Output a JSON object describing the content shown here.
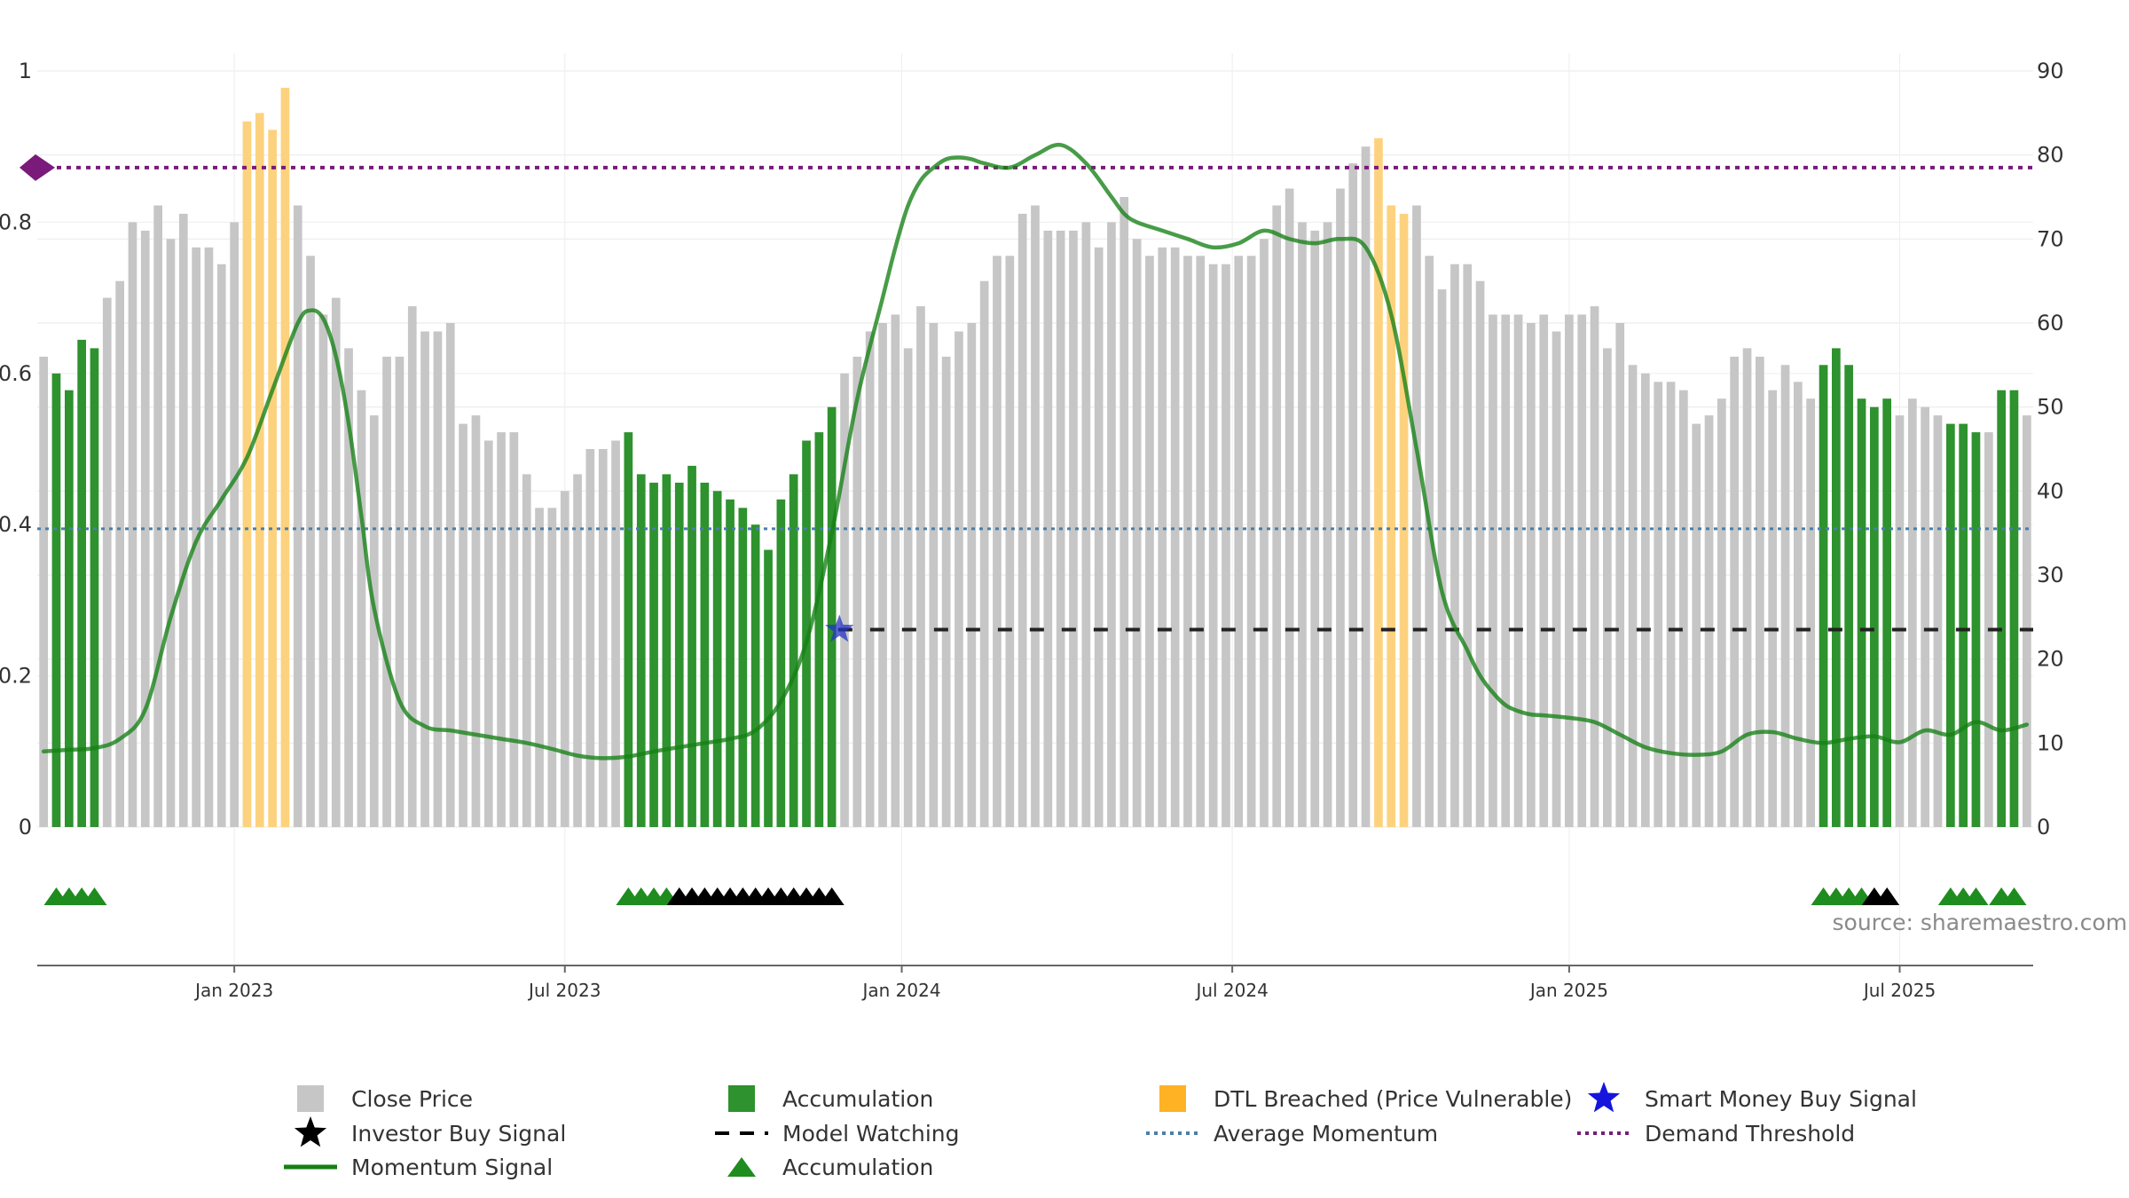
{
  "chart_data": {
    "type": "bar",
    "source": "source: sharemaestro.com",
    "left_axis": {
      "ticks": [
        0,
        0.2,
        0.4,
        0.6,
        0.8,
        1
      ],
      "tick_labels": [
        "0",
        "0.2",
        "0.4",
        "0.6",
        "0.8",
        "1"
      ],
      "ylim": [
        0,
        1
      ]
    },
    "right_axis": {
      "ticks": [
        0,
        10,
        20,
        30,
        40,
        50,
        60,
        70,
        80,
        90
      ],
      "tick_labels": [
        "0",
        "10",
        "20",
        "30",
        "40",
        "50",
        "60",
        "70",
        "80",
        "90"
      ],
      "ylim": [
        0,
        90
      ]
    },
    "x_axis": {
      "range": [
        0,
        157
      ],
      "ticks": [
        15.5,
        41.5,
        68,
        94,
        120.5,
        146.5
      ],
      "tick_labels": [
        "Jan 2023",
        "Jul 2023",
        "Jan 2024",
        "Jul 2024",
        "Jan 2025",
        "Jul 2025"
      ]
    },
    "bars": {
      "name": "Close Price",
      "values": [
        56,
        54,
        52,
        58,
        57,
        63,
        65,
        72,
        71,
        74,
        70,
        73,
        69,
        69,
        67,
        72,
        84,
        85,
        83,
        88,
        74,
        68,
        61,
        63,
        57,
        52,
        49,
        56,
        56,
        62,
        59,
        59,
        60,
        48,
        49,
        46,
        47,
        47,
        42,
        38,
        38,
        40,
        42,
        45,
        45,
        46,
        47,
        42,
        41,
        42,
        41,
        43,
        41,
        40,
        39,
        38,
        36,
        33,
        39,
        42,
        46,
        47,
        50,
        54,
        56,
        59,
        60,
        61,
        57,
        62,
        60,
        56,
        59,
        60,
        65,
        68,
        68,
        73,
        74,
        71,
        71,
        71,
        72,
        69,
        72,
        75,
        70,
        68,
        69,
        69,
        68,
        68,
        67,
        67,
        68,
        68,
        70,
        74,
        76,
        72,
        71,
        72,
        76,
        79,
        81,
        82,
        74,
        73,
        74,
        68,
        64,
        67,
        67,
        65,
        61,
        61,
        61,
        60,
        61,
        59,
        61,
        61,
        62,
        57,
        60,
        55,
        54,
        53,
        53,
        52,
        48,
        49,
        51,
        56,
        57,
        56,
        52,
        55,
        53,
        51,
        55,
        57,
        55,
        51,
        50,
        51,
        49,
        51,
        50,
        49,
        48,
        48,
        47,
        47,
        52,
        52,
        49
      ],
      "colors": {
        "price": "#c6c6c6",
        "accumulation": "#2e922e",
        "dtl": "#fdd27e"
      },
      "accumulation_ranges": [
        [
          1,
          4
        ],
        [
          46,
          62
        ],
        [
          140,
          145
        ],
        [
          150,
          152
        ],
        [
          154,
          155
        ]
      ],
      "dtl_ranges": [
        [
          16,
          19
        ],
        [
          105,
          107
        ]
      ]
    },
    "momentum_signal": {
      "name": "Momentum Signal",
      "color": "#158015",
      "x": [
        0,
        2,
        4,
        6,
        8,
        10,
        12,
        14,
        16,
        18,
        20,
        21,
        22,
        23,
        24,
        25,
        26,
        28,
        30,
        32,
        34,
        36,
        38,
        40,
        42,
        44,
        46,
        48,
        50,
        52,
        54,
        56,
        58,
        60,
        62,
        64,
        66,
        67,
        68,
        69,
        70,
        71,
        72,
        73,
        74,
        76,
        78,
        80,
        82,
        84,
        85,
        86,
        88,
        90,
        92,
        94,
        96,
        98,
        100,
        102,
        104,
        106,
        108,
        110,
        112,
        113,
        114,
        115,
        116,
        117,
        118,
        120,
        122,
        124,
        126,
        128,
        130,
        132,
        134,
        136,
        138,
        140,
        142,
        144,
        146,
        148,
        150,
        152,
        154,
        156
      ],
      "y": [
        9,
        9.2,
        9.4,
        10.5,
        14,
        25,
        34,
        39,
        44,
        52,
        60,
        61.5,
        60.5,
        56,
        48,
        37,
        26,
        15,
        12,
        11.5,
        11,
        10.5,
        10,
        9.3,
        8.5,
        8.2,
        8.4,
        9,
        9.5,
        10,
        10.5,
        11.5,
        15,
        22,
        35,
        51,
        63,
        69,
        74,
        77,
        78.5,
        79.5,
        79.7,
        79.5,
        79,
        78.5,
        80,
        81.2,
        79,
        75,
        73,
        72,
        71,
        70,
        69,
        69.5,
        71,
        70,
        69.5,
        70,
        69,
        61,
        45,
        28,
        21,
        18,
        16,
        14.5,
        13.8,
        13.4,
        13.3,
        13,
        12.5,
        11,
        9.5,
        8.8,
        8.6,
        9,
        11,
        11.3,
        10.5,
        10,
        10.5,
        10.8,
        10.1,
        11.5,
        11,
        12.5,
        11.5,
        12.2
      ]
    },
    "average_momentum": {
      "name": "Average Momentum",
      "value": 35.5,
      "color": "#4a7fa8"
    },
    "demand_threshold": {
      "name": "Demand Threshold",
      "value": 78.5,
      "color": "#7a1a7a"
    },
    "model_watching": {
      "name": "Model Watching",
      "value": 23.5,
      "x_range": [
        63,
        157
      ],
      "color": "#222222"
    },
    "smart_money_signals": [
      {
        "x": 62.6,
        "y": 23.5
      }
    ],
    "accumulation_markers": [
      1,
      2,
      3,
      4,
      46,
      47,
      48,
      49,
      140,
      141,
      142,
      143,
      150,
      151,
      152,
      154,
      155
    ],
    "investor_buy_markers": [
      50,
      51,
      52,
      53,
      54,
      55,
      56,
      57,
      58,
      59,
      60,
      61,
      62,
      144,
      145
    ],
    "legend_position": "bottom",
    "legend": [
      {
        "label": "Close Price",
        "swatch": "square",
        "color": "#c6c6c6"
      },
      {
        "label": "Accumulation",
        "swatch": "square",
        "color": "#2e922e"
      },
      {
        "label": "DTL Breached (Price Vulnerable)",
        "swatch": "square",
        "color": "#ffb224"
      },
      {
        "label": "Smart Money Buy Signal",
        "swatch": "star",
        "color": "#1515dd"
      },
      {
        "label": "Investor Buy Signal",
        "swatch": "star",
        "color": "#000000"
      },
      {
        "label": "Model Watching",
        "swatch": "dash",
        "color": "#000000"
      },
      {
        "label": "Average Momentum",
        "swatch": "dots",
        "color": "#4a7fa8"
      },
      {
        "label": "Demand Threshold",
        "swatch": "dots",
        "color": "#7a1a7a"
      },
      {
        "label": "Momentum Signal",
        "swatch": "line",
        "color": "#158015"
      },
      {
        "label": "Accumulation",
        "swatch": "triangle",
        "color": "#1e8c1e"
      }
    ]
  }
}
